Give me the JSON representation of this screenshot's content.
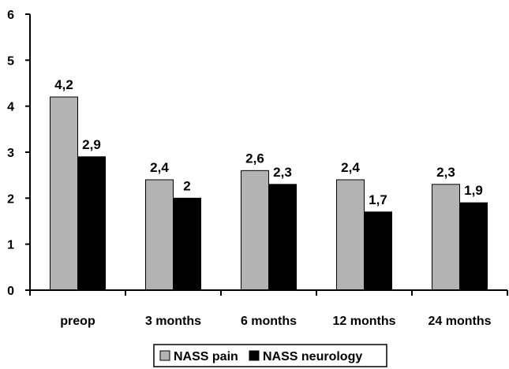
{
  "chart_data": {
    "type": "bar",
    "categories": [
      "preop",
      "3 months",
      "6 months",
      "12 months",
      "24 months"
    ],
    "series": [
      {
        "name": "NASS pain",
        "values": [
          4.2,
          2.4,
          2.6,
          2.4,
          2.3
        ],
        "labels": [
          "4,2",
          "2,4",
          "2,6",
          "2,4",
          "2,3"
        ],
        "color": "#b3b3b3"
      },
      {
        "name": "NASS neurology",
        "values": [
          2.9,
          2.0,
          2.3,
          1.7,
          1.9
        ],
        "labels": [
          "2,9",
          "2",
          "2,3",
          "1,7",
          "1,9"
        ],
        "color": "#000000"
      }
    ],
    "ylim": [
      0,
      6
    ],
    "yticks": [
      "0",
      "1",
      "2",
      "3",
      "4",
      "5",
      "6"
    ],
    "grid": false,
    "legend": "bottom",
    "title": "",
    "xlabel": "",
    "ylabel": ""
  }
}
